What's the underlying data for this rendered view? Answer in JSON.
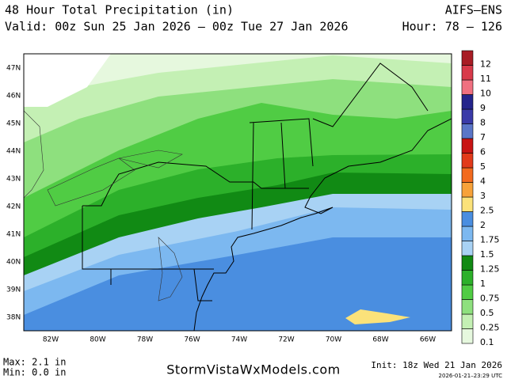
{
  "header": {
    "title": "48 Hour Total Precipitation (in)",
    "valid": "Valid: 00z Sun 25 Jan 2026 – 00z Tue 27 Jan 2026",
    "model": "AIFS–ENS",
    "hour": "Hour: 78 – 126"
  },
  "latitude_labels": [
    "47N",
    "46N",
    "45N",
    "44N",
    "43N",
    "42N",
    "41N",
    "40N",
    "39N",
    "38N"
  ],
  "longitude_labels": [
    "82W",
    "80W",
    "78W",
    "76W",
    "74W",
    "72W",
    "70W",
    "68W",
    "66W"
  ],
  "colorbar": {
    "labels": [
      "0.1",
      "0.25",
      "0.5",
      "0.75",
      "1",
      "1.25",
      "1.5",
      "1.75",
      "2",
      "2.5",
      "3",
      "4",
      "5",
      "6",
      "7",
      "8",
      "9",
      "10",
      "11",
      "12"
    ],
    "colors": [
      "#e6f8de",
      "#c4f0b4",
      "#8ee07e",
      "#50cc44",
      "#2cb02a",
      "#118a14",
      "#a8d2f4",
      "#7cb8f0",
      "#4a8ee0",
      "#fbe27a",
      "#f7a23a",
      "#f26a1e",
      "#e23a1a",
      "#c81414",
      "#5a76c8",
      "#3a3aa8",
      "#24248c",
      "#f07080",
      "#d83a4a",
      "#a81c24"
    ]
  },
  "footer": {
    "max": "Max: 2.1 in",
    "min": "Min: 0.0 in",
    "site": "StormVistaWxModels.com",
    "init": "Init: 18z Wed 21 Jan 2026",
    "timestamp": "2026-01-21–23:29 UTC"
  }
}
